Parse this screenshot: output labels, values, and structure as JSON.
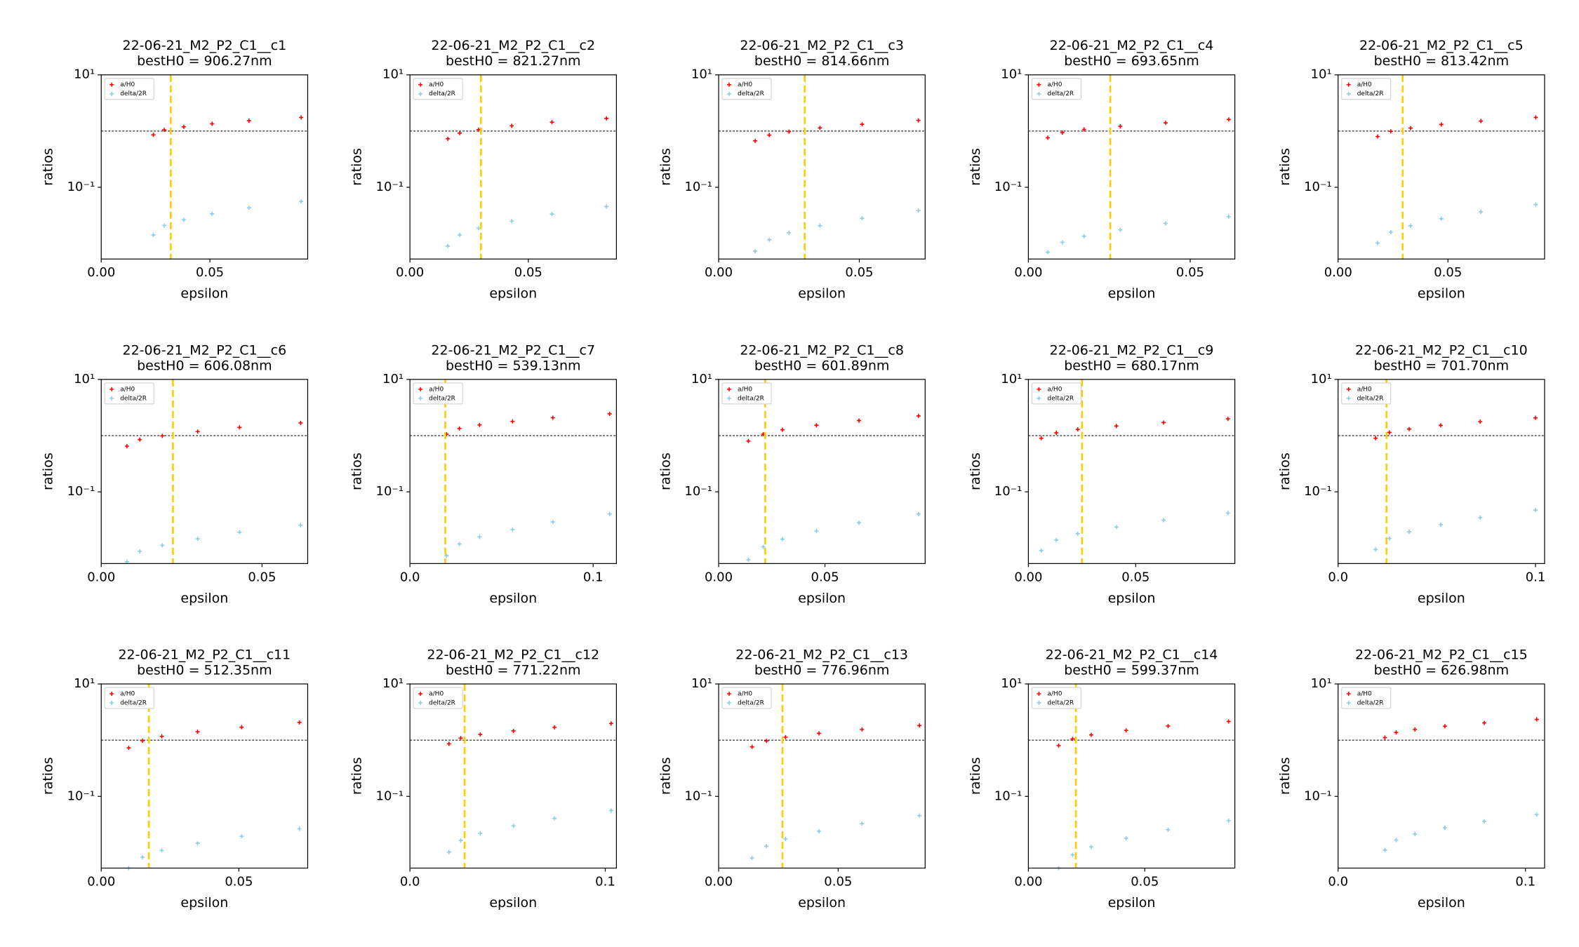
{
  "chart_data": [
    {
      "type": "scatter",
      "title": "22-06-21_M2_P2_C1__c1",
      "subtitle": "bestH0 = 906.27nm",
      "xlabel": "epsilon",
      "ylabel": "ratios",
      "yscale": "log",
      "x": [
        0.024,
        0.029,
        0.038,
        0.051,
        0.068,
        0.092
      ],
      "series": [
        {
          "name": "a/H0",
          "color": "#ff0000",
          "values": [
            0.86,
            1.05,
            1.19,
            1.35,
            1.53,
            1.75
          ]
        },
        {
          "name": "delta/2R",
          "color": "#87ceeb",
          "values": [
            0.0142,
            0.0209,
            0.0264,
            0.0337,
            0.0432,
            0.056
          ]
        }
      ],
      "xlim": [
        0,
        0.095
      ],
      "xticks": [
        {
          "value": 0,
          "label": "0.00"
        },
        0.05
      ],
      "ylim": [
        0.0053,
        10
      ],
      "yticks": [
        {
          "value": 0.1,
          "label": "10⁻¹"
        },
        {
          "value": 10,
          "label": "10¹"
        }
      ],
      "hline": 1,
      "vline": 0.032,
      "vline_color": "#ffcc00"
    },
    {
      "type": "scatter",
      "title": "22-06-21_M2_P2_C1__c2",
      "subtitle": "bestH0 = 821.27nm",
      "xlabel": "epsilon",
      "ylabel": "ratios",
      "yscale": "log",
      "x": [
        0.016,
        0.021,
        0.029,
        0.043,
        0.06,
        0.083
      ],
      "series": [
        {
          "name": "a/H0",
          "color": "#ff0000",
          "values": [
            0.73,
            0.92,
            1.06,
            1.24,
            1.44,
            1.68
          ]
        },
        {
          "name": "delta/2R",
          "color": "#87ceeb",
          "values": [
            0.009,
            0.0142,
            0.0187,
            0.025,
            0.0334,
            0.0455
          ]
        }
      ],
      "xlim": [
        0,
        0.0872
      ],
      "xticks": [
        {
          "value": 0,
          "label": "0.00"
        },
        0.05
      ],
      "ylim": [
        0.0053,
        10
      ],
      "yticks": [
        {
          "value": 0.1,
          "label": "10⁻¹"
        },
        {
          "value": 10,
          "label": "10¹"
        }
      ],
      "hline": 1,
      "vline": 0.03,
      "vline_color": "#ffcc00"
    },
    {
      "type": "scatter",
      "title": "22-06-21_M2_P2_C1__c3",
      "subtitle": "bestH0 = 814.66nm",
      "xlabel": "epsilon",
      "ylabel": "ratios",
      "yscale": "log",
      "x": [
        0.013,
        0.018,
        0.025,
        0.036,
        0.051,
        0.071
      ],
      "series": [
        {
          "name": "a/H0",
          "color": "#ff0000",
          "values": [
            0.67,
            0.85,
            0.98,
            1.14,
            1.32,
            1.55
          ]
        },
        {
          "name": "delta/2R",
          "color": "#87ceeb",
          "values": [
            0.0073,
            0.0117,
            0.0155,
            0.0208,
            0.0281,
            0.0385
          ]
        }
      ],
      "xlim": [
        0,
        0.0734
      ],
      "xticks": [
        {
          "value": 0,
          "label": "0.00"
        },
        0.05
      ],
      "ylim": [
        0.0053,
        10
      ],
      "yticks": [
        {
          "value": 0.1,
          "label": "10⁻¹"
        },
        {
          "value": 10,
          "label": "10¹"
        }
      ],
      "hline": 1,
      "vline": 0.0306,
      "vline_color": "#ffcc00"
    },
    {
      "type": "scatter",
      "title": "22-06-21_M2_P2_C1__c4",
      "subtitle": "bestH0 = 693.65nm",
      "xlabel": "epsilon",
      "ylabel": "ratios",
      "yscale": "log",
      "x": [
        0.006,
        0.0105,
        0.0172,
        0.0284,
        0.0424,
        0.0619
      ],
      "series": [
        {
          "name": "a/H0",
          "color": "#ff0000",
          "values": [
            0.76,
            0.94,
            1.07,
            1.22,
            1.4,
            1.61
          ]
        },
        {
          "name": "delta/2R",
          "color": "#87ceeb",
          "values": [
            0.007,
            0.0105,
            0.0135,
            0.0175,
            0.0228,
            0.03
          ]
        }
      ],
      "xlim": [
        0,
        0.0638
      ],
      "xticks": [
        {
          "value": 0,
          "label": "0.00"
        },
        0.05
      ],
      "ylim": [
        0.0053,
        10
      ],
      "yticks": [
        {
          "value": 0.1,
          "label": "10⁻¹"
        },
        {
          "value": 10,
          "label": "10¹"
        }
      ],
      "hline": 1,
      "vline": 0.0253,
      "vline_color": "#ffcc00"
    },
    {
      "type": "scatter",
      "title": "22-06-21_M2_P2_C1__c5",
      "subtitle": "bestH0 = 813.42nm",
      "xlabel": "epsilon",
      "ylabel": "ratios",
      "yscale": "log",
      "x": [
        0.018,
        0.024,
        0.033,
        0.047,
        0.065,
        0.09
      ],
      "series": [
        {
          "name": "a/H0",
          "color": "#ff0000",
          "values": [
            0.8,
            0.99,
            1.13,
            1.31,
            1.51,
            1.75
          ]
        },
        {
          "name": "delta/2R",
          "color": "#87ceeb",
          "values": [
            0.0102,
            0.0159,
            0.0207,
            0.0276,
            0.0366,
            0.0494
          ]
        }
      ],
      "xlim": [
        0,
        0.094
      ],
      "xticks": [
        {
          "value": 0,
          "label": "0.00"
        },
        0.05
      ],
      "ylim": [
        0.0053,
        10
      ],
      "yticks": [
        {
          "value": 0.1,
          "label": "10⁻¹"
        },
        {
          "value": 10,
          "label": "10¹"
        }
      ],
      "hline": 1,
      "vline": 0.0294,
      "vline_color": "#ffcc00"
    },
    {
      "type": "scatter",
      "title": "22-06-21_M2_P2_C1__c6",
      "subtitle": "bestH0 = 606.08nm",
      "xlabel": "epsilon",
      "ylabel": "ratios",
      "yscale": "log",
      "x": [
        0.008,
        0.012,
        0.019,
        0.03,
        0.043,
        0.062
      ],
      "series": [
        {
          "name": "a/H0",
          "color": "#ff0000",
          "values": [
            0.65,
            0.85,
            0.99,
            1.18,
            1.4,
            1.68
          ]
        },
        {
          "name": "delta/2R",
          "color": "#87ceeb",
          "values": [
            0.0057,
            0.0087,
            0.0112,
            0.0146,
            0.0191,
            0.0254
          ]
        }
      ],
      "xlim": [
        0,
        0.0642
      ],
      "xticks": [
        {
          "value": 0,
          "label": "0.00"
        },
        0.05
      ],
      "ylim": [
        0.0053,
        10
      ],
      "yticks": [
        {
          "value": 0.1,
          "label": "10⁻¹"
        },
        {
          "value": 10,
          "label": "10¹"
        }
      ],
      "hline": 1,
      "vline": 0.0223,
      "vline_color": "#ffcc00"
    },
    {
      "type": "scatter",
      "title": "22-06-21_M2_P2_C1__c7",
      "subtitle": "bestH0 = 539.13nm",
      "xlabel": "epsilon",
      "ylabel": "ratios",
      "yscale": "log",
      "x": [
        0.02,
        0.027,
        0.038,
        0.056,
        0.078,
        0.109
      ],
      "series": [
        {
          "name": "a/H0",
          "color": "#ff0000",
          "values": [
            1.06,
            1.34,
            1.55,
            1.79,
            2.08,
            2.44
          ]
        },
        {
          "name": "delta/2R",
          "color": "#87ceeb",
          "values": [
            0.0073,
            0.0118,
            0.0158,
            0.0214,
            0.0291,
            0.0402
          ]
        }
      ],
      "xlim": [
        0,
        0.1127
      ],
      "xticks": [
        {
          "value": 0,
          "label": "0.0"
        },
        0.1
      ],
      "ylim": [
        0.0053,
        10
      ],
      "yticks": [
        {
          "value": 0.1,
          "label": "10⁻¹"
        },
        {
          "value": 10,
          "label": "10¹"
        }
      ],
      "hline": 1,
      "vline": 0.0193,
      "vline_color": "#ffcc00"
    },
    {
      "type": "scatter",
      "title": "22-06-21_M2_P2_C1__c8",
      "subtitle": "bestH0 = 601.89nm",
      "xlabel": "epsilon",
      "ylabel": "ratios",
      "yscale": "log",
      "x": [
        0.014,
        0.021,
        0.03,
        0.046,
        0.066,
        0.094
      ],
      "series": [
        {
          "name": "a/H0",
          "color": "#ff0000",
          "values": [
            0.8,
            1.06,
            1.27,
            1.53,
            1.85,
            2.24
          ]
        },
        {
          "name": "delta/2R",
          "color": "#87ceeb",
          "values": [
            0.0062,
            0.0105,
            0.0144,
            0.0201,
            0.0282,
            0.0402
          ]
        }
      ],
      "xlim": [
        0,
        0.0971
      ],
      "xticks": [
        {
          "value": 0,
          "label": "0.00"
        },
        0.05
      ],
      "ylim": [
        0.0053,
        10
      ],
      "yticks": [
        {
          "value": 0.1,
          "label": "10⁻¹"
        },
        {
          "value": 10,
          "label": "10¹"
        }
      ],
      "hline": 1,
      "vline": 0.0219,
      "vline_color": "#ffcc00"
    },
    {
      "type": "scatter",
      "title": "22-06-21_M2_P2_C1__c9",
      "subtitle": "bestH0 = 680.17nm",
      "xlabel": "epsilon",
      "ylabel": "ratios",
      "yscale": "log",
      "x": [
        0.006,
        0.013,
        0.023,
        0.041,
        0.063,
        0.093
      ],
      "series": [
        {
          "name": "a/H0",
          "color": "#ff0000",
          "values": [
            0.9,
            1.12,
            1.29,
            1.48,
            1.71,
            1.98
          ]
        },
        {
          "name": "delta/2R",
          "color": "#87ceeb",
          "values": [
            0.009,
            0.0139,
            0.018,
            0.0237,
            0.0313,
            0.0419
          ]
        }
      ],
      "xlim": [
        0,
        0.0962
      ],
      "xticks": [
        {
          "value": 0,
          "label": "0.00"
        },
        0.05
      ],
      "ylim": [
        0.0053,
        10
      ],
      "yticks": [
        {
          "value": 0.1,
          "label": "10⁻¹"
        },
        {
          "value": 10,
          "label": "10¹"
        }
      ],
      "hline": 1,
      "vline": 0.025,
      "vline_color": "#ffcc00"
    },
    {
      "type": "scatter",
      "title": "22-06-21_M2_P2_C1__c10",
      "subtitle": "bestH0 = 701.70nm",
      "xlabel": "epsilon",
      "ylabel": "ratios",
      "yscale": "log",
      "x": [
        0.019,
        0.026,
        0.036,
        0.052,
        0.072,
        0.1
      ],
      "series": [
        {
          "name": "a/H0",
          "color": "#ff0000",
          "values": [
            0.9,
            1.14,
            1.31,
            1.52,
            1.77,
            2.07
          ]
        },
        {
          "name": "delta/2R",
          "color": "#87ceeb",
          "values": [
            0.0094,
            0.0148,
            0.0195,
            0.0261,
            0.0348,
            0.0474
          ]
        }
      ],
      "xlim": [
        0,
        0.1046
      ],
      "xticks": [
        {
          "value": 0,
          "label": "0.0"
        },
        0.1
      ],
      "ylim": [
        0.0053,
        10
      ],
      "yticks": [
        {
          "value": 0.1,
          "label": "10⁻¹"
        },
        {
          "value": 10,
          "label": "10¹"
        }
      ],
      "hline": 1,
      "vline": 0.0245,
      "vline_color": "#ffcc00"
    },
    {
      "type": "scatter",
      "title": "22-06-21_M2_P2_C1__c11",
      "subtitle": "bestH0 = 512.35nm",
      "xlabel": "epsilon",
      "ylabel": "ratios",
      "yscale": "log",
      "x": [
        0.01,
        0.015,
        0.022,
        0.035,
        0.051,
        0.072
      ],
      "series": [
        {
          "name": "a/H0",
          "color": "#ff0000",
          "values": [
            0.73,
            0.98,
            1.17,
            1.41,
            1.7,
            2.07
          ]
        },
        {
          "name": "delta/2R",
          "color": "#87ceeb",
          "values": [
            0.0053,
            0.0083,
            0.0109,
            0.0146,
            0.0195,
            0.0265
          ]
        }
      ],
      "xlim": [
        0,
        0.075
      ],
      "xticks": [
        {
          "value": 0,
          "label": "0.00"
        },
        0.05
      ],
      "ylim": [
        0.0053,
        10
      ],
      "yticks": [
        {
          "value": 0.1,
          "label": "10⁻¹"
        },
        {
          "value": 10,
          "label": "10¹"
        }
      ],
      "hline": 1,
      "vline": 0.0173,
      "vline_color": "#ffcc00"
    },
    {
      "type": "scatter",
      "title": "22-06-21_M2_P2_C1__c12",
      "subtitle": "bestH0 = 771.22nm",
      "xlabel": "epsilon",
      "ylabel": "ratios",
      "yscale": "log",
      "x": [
        0.02,
        0.026,
        0.036,
        0.053,
        0.074,
        0.103
      ],
      "series": [
        {
          "name": "a/H0",
          "color": "#ff0000",
          "values": [
            0.86,
            1.09,
            1.26,
            1.46,
            1.69,
            1.98
          ]
        },
        {
          "name": "delta/2R",
          "color": "#87ceeb",
          "values": [
            0.0102,
            0.0164,
            0.022,
            0.0299,
            0.0406,
            0.056
          ]
        }
      ],
      "xlim": [
        0,
        0.1057
      ],
      "xticks": [
        {
          "value": 0,
          "label": "0.0"
        },
        0.1
      ],
      "ylim": [
        0.0053,
        10
      ],
      "yticks": [
        {
          "value": 0.1,
          "label": "10⁻¹"
        },
        {
          "value": 10,
          "label": "10¹"
        }
      ],
      "hline": 1,
      "vline": 0.028,
      "vline_color": "#ffcc00"
    },
    {
      "type": "scatter",
      "title": "22-06-21_M2_P2_C1__c13",
      "subtitle": "bestH0 = 776.96nm",
      "xlabel": "epsilon",
      "ylabel": "ratios",
      "yscale": "log",
      "x": [
        0.014,
        0.02,
        0.028,
        0.042,
        0.06,
        0.084
      ],
      "series": [
        {
          "name": "a/H0",
          "color": "#ff0000",
          "values": [
            0.76,
            0.97,
            1.13,
            1.32,
            1.55,
            1.82
          ]
        },
        {
          "name": "delta/2R",
          "color": "#87ceeb",
          "values": [
            0.008,
            0.013,
            0.0175,
            0.0239,
            0.0327,
            0.0455
          ]
        }
      ],
      "xlim": [
        0,
        0.0864
      ],
      "xticks": [
        {
          "value": 0,
          "label": "0.00"
        },
        0.05
      ],
      "ylim": [
        0.0053,
        10
      ],
      "yticks": [
        {
          "value": 0.1,
          "label": "10⁻¹"
        },
        {
          "value": 10,
          "label": "10¹"
        }
      ],
      "hline": 1,
      "vline": 0.0267,
      "vline_color": "#ffcc00"
    },
    {
      "type": "scatter",
      "title": "22-06-21_M2_P2_C1__c14",
      "subtitle": "bestH0 = 599.37nm",
      "xlabel": "epsilon",
      "ylabel": "ratios",
      "yscale": "log",
      "x": [
        0.013,
        0.019,
        0.027,
        0.042,
        0.06,
        0.086
      ],
      "series": [
        {
          "name": "a/H0",
          "color": "#ff0000",
          "values": [
            0.8,
            1.05,
            1.24,
            1.49,
            1.78,
            2.15
          ]
        },
        {
          "name": "delta/2R",
          "color": "#87ceeb",
          "values": [
            0.0053,
            0.0091,
            0.0126,
            0.018,
            0.0255,
            0.037
          ]
        }
      ],
      "xlim": [
        0,
        0.0887
      ],
      "xticks": [
        {
          "value": 0,
          "label": "0.00"
        },
        0.05
      ],
      "ylim": [
        0.0053,
        10
      ],
      "yticks": [
        {
          "value": 0.1,
          "label": "10⁻¹"
        },
        {
          "value": 10,
          "label": "10¹"
        }
      ],
      "hline": 1,
      "vline": 0.0204,
      "vline_color": "#ffcc00"
    },
    {
      "type": "scatter",
      "title": "22-06-21_M2_P2_C1__c15",
      "subtitle": "bestH0 = 626.98nm",
      "xlabel": "epsilon",
      "ylabel": "ratios",
      "yscale": "log",
      "x": [
        0.025,
        0.031,
        0.041,
        0.057,
        0.078,
        0.106
      ],
      "series": [
        {
          "name": "a/H0",
          "color": "#ff0000",
          "values": [
            1.11,
            1.37,
            1.55,
            1.77,
            2.03,
            2.34
          ]
        },
        {
          "name": "delta/2R",
          "color": "#87ceeb",
          "values": [
            0.0111,
            0.0167,
            0.0213,
            0.0277,
            0.036,
            0.0474
          ]
        }
      ],
      "xlim": [
        0,
        0.1102
      ],
      "xticks": [
        {
          "value": 0,
          "label": "0.0"
        },
        0.1
      ],
      "ylim": [
        0.0053,
        10
      ],
      "yticks": [
        {
          "value": 0.1,
          "label": "10⁻¹"
        },
        {
          "value": 10,
          "label": "10¹"
        }
      ],
      "hline": 1
    }
  ]
}
